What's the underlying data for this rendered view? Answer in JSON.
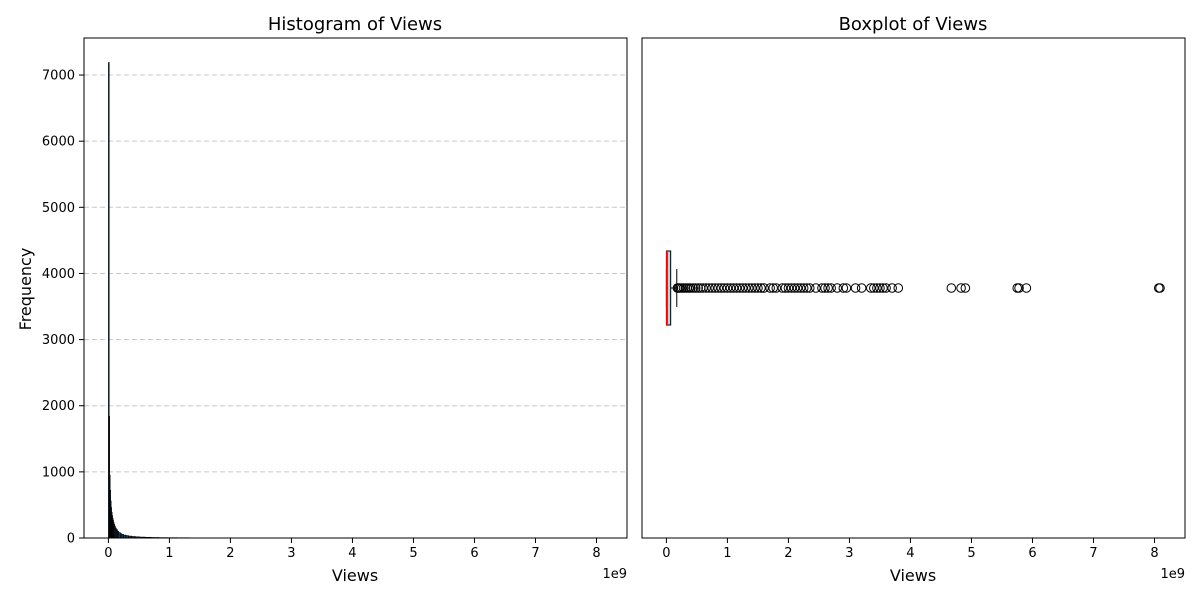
{
  "chart_data": [
    {
      "type": "histogram",
      "title": "Histogram of Views",
      "xlabel": "Views",
      "ylabel": "Frequency",
      "x_offset_label": "1e9",
      "xlim": [
        -0.4,
        8.5
      ],
      "ylim": [
        0,
        7560
      ],
      "xticks": [
        0,
        1,
        2,
        3,
        4,
        5,
        6,
        7,
        8
      ],
      "xtick_labels": [
        "0",
        "1",
        "2",
        "3",
        "4",
        "5",
        "6",
        "7",
        "8"
      ],
      "yticks": [
        0,
        1000,
        2000,
        3000,
        4000,
        5000,
        6000,
        7000
      ],
      "ytick_labels": [
        "0",
        "1000",
        "2000",
        "3000",
        "4000",
        "5000",
        "6000",
        "7000"
      ],
      "grid": "y-dashed",
      "bar_color": "#1f3b57",
      "bar_edge_color": "#000000",
      "bins": [
        {
          "x0": 0.0,
          "x1": 0.008,
          "count": 7190
        },
        {
          "x0": 0.008,
          "x1": 0.016,
          "count": 1840
        },
        {
          "x0": 0.016,
          "x1": 0.024,
          "count": 950
        },
        {
          "x0": 0.024,
          "x1": 0.032,
          "count": 720
        },
        {
          "x0": 0.032,
          "x1": 0.04,
          "count": 560
        },
        {
          "x0": 0.04,
          "x1": 0.048,
          "count": 460
        },
        {
          "x0": 0.048,
          "x1": 0.056,
          "count": 390
        },
        {
          "x0": 0.056,
          "x1": 0.064,
          "count": 340
        },
        {
          "x0": 0.064,
          "x1": 0.072,
          "count": 300
        },
        {
          "x0": 0.072,
          "x1": 0.08,
          "count": 265
        },
        {
          "x0": 0.08,
          "x1": 0.09,
          "count": 235
        },
        {
          "x0": 0.09,
          "x1": 0.1,
          "count": 205
        },
        {
          "x0": 0.1,
          "x1": 0.115,
          "count": 180
        },
        {
          "x0": 0.115,
          "x1": 0.13,
          "count": 150
        },
        {
          "x0": 0.13,
          "x1": 0.15,
          "count": 125
        },
        {
          "x0": 0.15,
          "x1": 0.17,
          "count": 100
        },
        {
          "x0": 0.17,
          "x1": 0.195,
          "count": 82
        },
        {
          "x0": 0.195,
          "x1": 0.22,
          "count": 66
        },
        {
          "x0": 0.22,
          "x1": 0.25,
          "count": 54
        },
        {
          "x0": 0.25,
          "x1": 0.29,
          "count": 44
        },
        {
          "x0": 0.29,
          "x1": 0.33,
          "count": 36
        },
        {
          "x0": 0.33,
          "x1": 0.38,
          "count": 29
        },
        {
          "x0": 0.38,
          "x1": 0.44,
          "count": 23
        },
        {
          "x0": 0.44,
          "x1": 0.51,
          "count": 18
        },
        {
          "x0": 0.51,
          "x1": 0.6,
          "count": 14
        },
        {
          "x0": 0.6,
          "x1": 0.7,
          "count": 11
        },
        {
          "x0": 0.7,
          "x1": 0.82,
          "count": 8
        },
        {
          "x0": 0.82,
          "x1": 0.96,
          "count": 6
        },
        {
          "x0": 0.96,
          "x1": 1.12,
          "count": 5
        },
        {
          "x0": 1.12,
          "x1": 1.32,
          "count": 4
        },
        {
          "x0": 1.32,
          "x1": 1.6,
          "count": 3
        },
        {
          "x0": 1.6,
          "x1": 2.0,
          "count": 2
        },
        {
          "x0": 2.0,
          "x1": 2.6,
          "count": 1
        },
        {
          "x0": 2.6,
          "x1": 3.4,
          "count": 1
        },
        {
          "x0": 3.4,
          "x1": 4.0,
          "count": 1
        }
      ]
    },
    {
      "type": "boxplot",
      "title": "Boxplot of Views",
      "xlabel": "Views",
      "x_offset_label": "1e9",
      "orientation": "horizontal",
      "xlim": [
        -0.4,
        8.5
      ],
      "xticks": [
        0,
        1,
        2,
        3,
        4,
        5,
        6,
        7,
        8
      ],
      "xtick_labels": [
        "0",
        "1",
        "2",
        "3",
        "4",
        "5",
        "6",
        "7",
        "8"
      ],
      "box_color": "#add8e6",
      "median_color": "#ff0000",
      "box": {
        "whisker_low": 0.0,
        "q1": 0.001,
        "median": 0.008,
        "q3": 0.07,
        "whisker_high": 0.17
      },
      "outliers": [
        0.18,
        0.2,
        0.22,
        0.25,
        0.28,
        0.31,
        0.34,
        0.37,
        0.4,
        0.44,
        0.48,
        0.52,
        0.56,
        0.6,
        0.65,
        0.7,
        0.75,
        0.8,
        0.85,
        0.9,
        0.95,
        1.0,
        1.05,
        1.1,
        1.15,
        1.2,
        1.25,
        1.3,
        1.35,
        1.4,
        1.45,
        1.5,
        1.55,
        1.6,
        1.7,
        1.75,
        1.8,
        1.9,
        1.95,
        2.0,
        2.05,
        2.1,
        2.15,
        2.2,
        2.25,
        2.3,
        2.35,
        2.45,
        2.55,
        2.6,
        2.65,
        2.7,
        2.8,
        2.9,
        2.95,
        3.1,
        3.2,
        3.35,
        3.4,
        3.45,
        3.5,
        3.55,
        3.6,
        3.7,
        3.8,
        4.67,
        4.83,
        4.9,
        5.75,
        5.78,
        5.9,
        8.07,
        8.09
      ]
    }
  ]
}
